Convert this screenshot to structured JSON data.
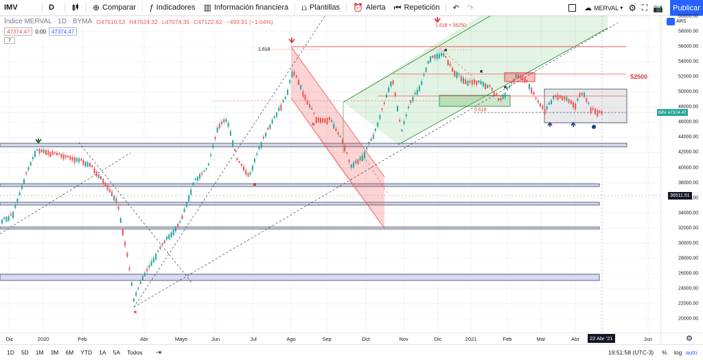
{
  "toolbar": {
    "symbol": "IMV",
    "interval": "D",
    "compare": "Comparar",
    "indicators": "Indicadores",
    "financial": "Información financiera",
    "templates": "Plantillas",
    "alert": "Alerta",
    "replay": "Repetición",
    "layout_name": "MERVAL",
    "publish": "Publicar"
  },
  "legend": {
    "title": "Índice MERVAL · 1D · BYMA",
    "open": "O47616.53",
    "high": "H47624.32",
    "low": "L47074.35",
    "close": "C47122.62",
    "change": "−493.91 (−1.04%)",
    "sell": "47374.47",
    "spread": "0.00",
    "buy": "47374.47",
    "indicators_count": "7"
  },
  "annotations": {
    "fib_top": "1.618",
    "fib_right": "1.618 = 58250",
    "fib_mid": "0.618",
    "level": "52500"
  },
  "price_axis": {
    "currency": "ARS",
    "labels": [
      "60000.00",
      "58000.00",
      "56000.00",
      "54000.00",
      "52000.00",
      "50000.00",
      "48000.00",
      "46000.00",
      "44000.00",
      "42000.00",
      "40000.00",
      "38000.00",
      "36000.00",
      "34000.00",
      "32000.00",
      "30000.00",
      "28000.00",
      "26000.00",
      "24000.00",
      "22000.00",
      "20000.00"
    ],
    "current_tag": "IMV",
    "current_value": "47374.47",
    "cursor_value": "36511.51"
  },
  "time_axis": {
    "labels": [
      "Dic",
      "2020",
      "Feb",
      "Abr",
      "Mayo",
      "Jun",
      "Jul",
      "Ago",
      "Sep",
      "Oct",
      "Nov",
      "Dic",
      "2021",
      "Feb",
      "Mar",
      "Abr",
      "Jun"
    ],
    "cursor_date": "22 Abr '21"
  },
  "bottom": {
    "ranges": [
      "1D",
      "5D",
      "1M",
      "3M",
      "6M",
      "YTD",
      "1A",
      "5A",
      "Todos"
    ],
    "time": "19:51:58 (UTC-3)",
    "percent": "%",
    "log": "log",
    "auto": "auto"
  },
  "colors": {
    "up": "#26a69a",
    "down": "#ef5350",
    "accent": "#2962ff"
  }
}
